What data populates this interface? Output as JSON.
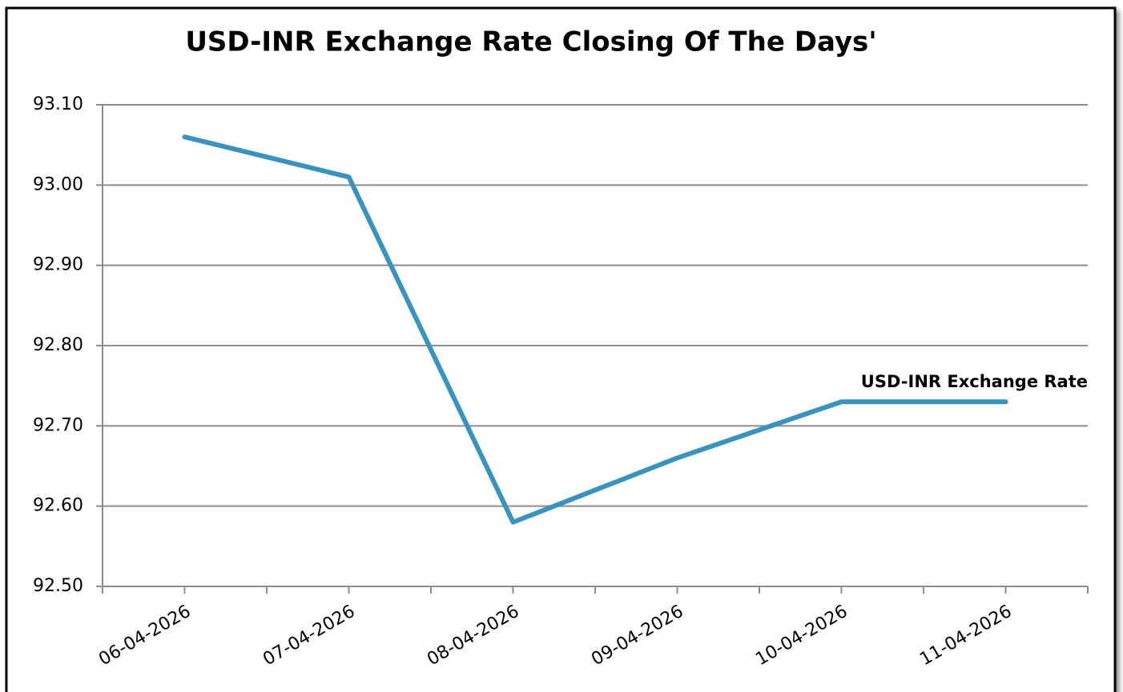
{
  "chart_data": {
    "type": "line",
    "title": "USD-INR Exchange Rate Closing Of The Days'",
    "categories": [
      "06-04-2026",
      "07-04-2026",
      "08-04-2026",
      "09-04-2026",
      "10-04-2026",
      "11-04-2026"
    ],
    "series": [
      {
        "name": "USD-INR Exchange Rate",
        "color": "#3a93bd",
        "values": [
          93.06,
          93.01,
          92.58,
          92.66,
          92.73,
          92.73
        ]
      }
    ],
    "ylim": [
      92.5,
      93.1
    ],
    "yticks": [
      {
        "value": 92.5,
        "label": "92.50"
      },
      {
        "value": 92.6,
        "label": "92.60"
      },
      {
        "value": 92.7,
        "label": "92.70"
      },
      {
        "value": 92.8,
        "label": "92.80"
      },
      {
        "value": 92.9,
        "label": "92.90"
      },
      {
        "value": 93.0,
        "label": "93.00"
      },
      {
        "value": 93.1,
        "label": "93.10"
      }
    ],
    "grid": true
  }
}
